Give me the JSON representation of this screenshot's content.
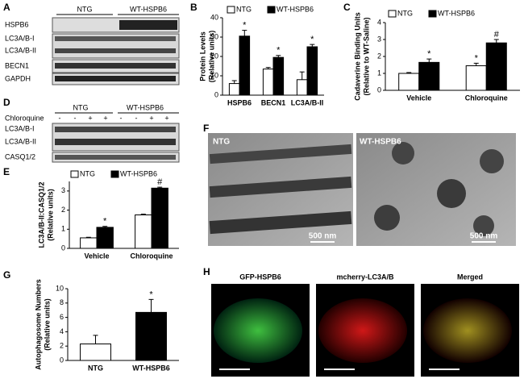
{
  "figure": {
    "panels": [
      "A",
      "B",
      "C",
      "D",
      "E",
      "F",
      "G",
      "H"
    ],
    "blot_a": {
      "groups": [
        "NTG",
        "WT-HSPB6"
      ],
      "rows": [
        "HSPB6",
        "LC3A/B-I",
        "LC3A/B-II",
        "BECN1",
        "GAPDH"
      ]
    },
    "blot_d": {
      "groups": [
        "NTG",
        "WT-HSPB6"
      ],
      "treatment": "Chloroquine",
      "lanes": [
        "-",
        "-",
        "+",
        "+",
        "-",
        "-",
        "+",
        "+"
      ],
      "rows": [
        "LC3A/B-I",
        "LC3A/B-II",
        "CASQ1/2"
      ]
    },
    "em": {
      "labels": [
        "NTG",
        "WT-HSPB6"
      ],
      "scale": [
        "500 nm",
        "500 nm"
      ]
    },
    "fluor": {
      "labels": [
        "GFP-HSPB6",
        "mcherry-LC3A/B",
        "Merged"
      ]
    }
  },
  "chart_data": [
    {
      "type": "bar",
      "y_label": [
        "Protein Levels",
        "(Relative units)"
      ],
      "categories": [
        "HSPB6",
        "BECN1",
        "LC3A/B-II"
      ],
      "series": [
        {
          "name": "NTG",
          "color": "#ffffff",
          "values": [
            6,
            13.5,
            8
          ],
          "errors": [
            1.5,
            0.8,
            4
          ],
          "markers": [
            null,
            null,
            null
          ]
        },
        {
          "name": "WT-HSPB6",
          "color": "#000000",
          "values": [
            30.5,
            19.5,
            25
          ],
          "errors": [
            3,
            1,
            1.2
          ],
          "markers": [
            "*",
            "*",
            "*"
          ]
        }
      ],
      "ylim": [
        0,
        40
      ],
      "yticks": [
        0,
        10,
        20,
        30,
        40
      ]
    },
    {
      "type": "bar",
      "y_label": [
        "Cadaverine Binding Units",
        "(Relative to WT-Saline)"
      ],
      "categories": [
        "Vehicle",
        "Chloroquine"
      ],
      "series": [
        {
          "name": "NTG",
          "color": "#ffffff",
          "values": [
            1,
            1.45
          ],
          "errors": [
            0.05,
            0.15
          ],
          "markers": [
            null,
            "*"
          ]
        },
        {
          "name": "WT-HSPB6",
          "color": "#000000",
          "values": [
            1.65,
            2.8
          ],
          "errors": [
            0.2,
            0.2
          ],
          "markers": [
            "*",
            "#"
          ]
        }
      ],
      "ylim": [
        0,
        4
      ],
      "yticks": [
        0,
        1,
        2,
        3,
        4
      ]
    },
    {
      "type": "bar",
      "y_label": [
        "LC3A/B-II:CASQ1/2",
        "(Relative units)"
      ],
      "categories": [
        "Vehicle",
        "Chloroquine"
      ],
      "series": [
        {
          "name": "NTG",
          "color": "#ffffff",
          "values": [
            0.55,
            1.75
          ],
          "errors": [
            0.03,
            0.04
          ],
          "markers": [
            null,
            null
          ]
        },
        {
          "name": "WT-HSPB6",
          "color": "#000000",
          "values": [
            1.1,
            3.15
          ],
          "errors": [
            0.05,
            0.05
          ],
          "markers": [
            "*",
            "#"
          ]
        }
      ],
      "ylim": [
        0,
        3.5
      ],
      "yticks": [
        0,
        1,
        2,
        3
      ]
    },
    {
      "type": "bar",
      "y_label": [
        "Autophagosome Numbers",
        "(Relative units)"
      ],
      "categories": [
        "NTG",
        "WT-HSPB6"
      ],
      "series": [
        {
          "colors": [
            "#ffffff",
            "#000000"
          ],
          "values": [
            2.3,
            6.7
          ],
          "errors": [
            1.2,
            1.8
          ],
          "markers": [
            null,
            "*"
          ]
        }
      ],
      "ylim": [
        0,
        10
      ],
      "yticks": [
        0,
        2,
        4,
        6,
        8,
        10
      ]
    }
  ]
}
